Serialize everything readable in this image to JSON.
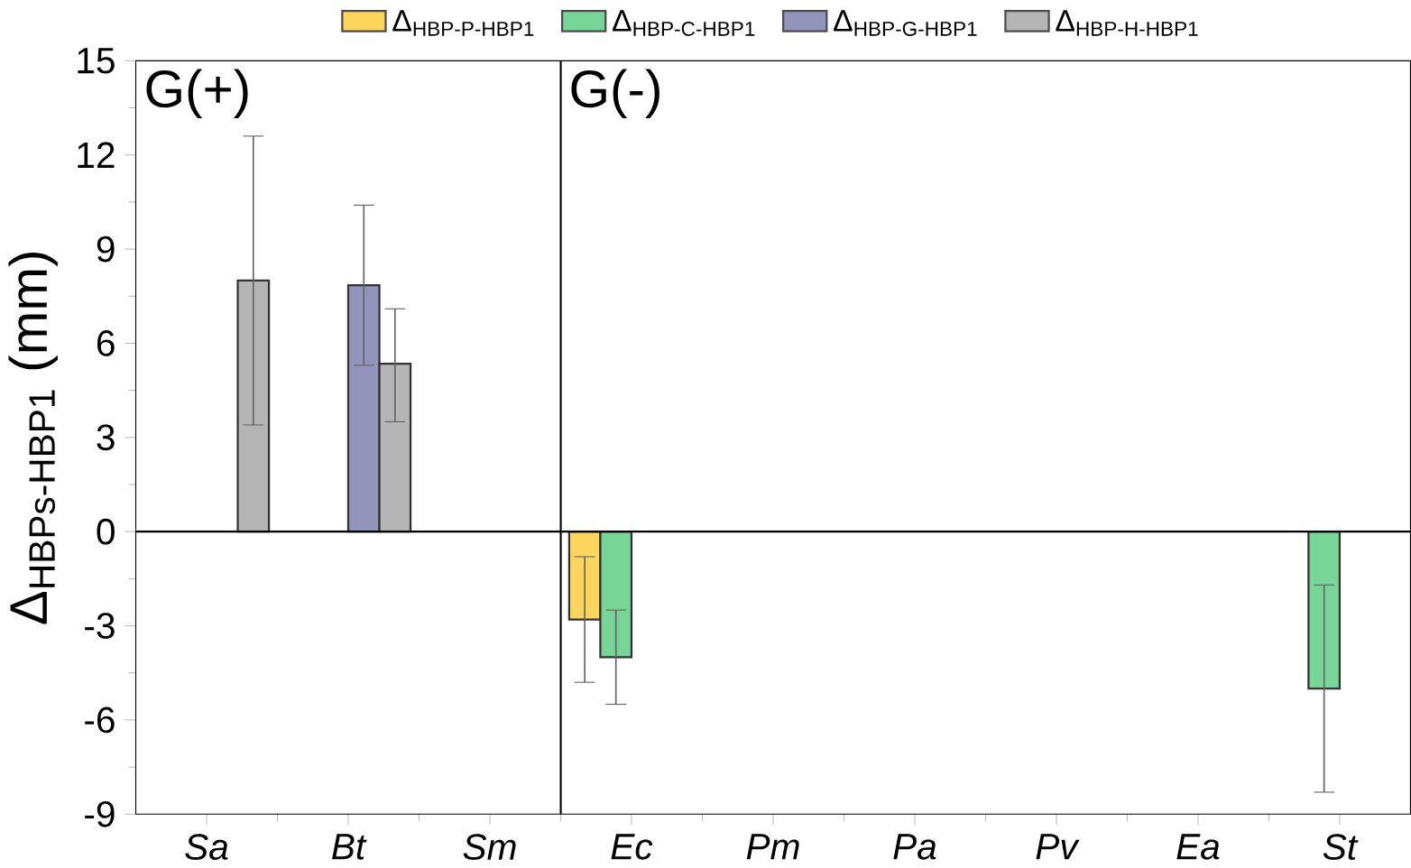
{
  "chart_data": {
    "type": "bar",
    "ylabel": "Δ$_{HBPs-HBP1}$ (mm)",
    "categories": [
      "Sa",
      "Bt",
      "Sm",
      "Ec",
      "Pm",
      "Pa",
      "Pv",
      "Ea",
      "St"
    ],
    "series": [
      {
        "name": "Δ$_{HBP-P-HBP1}$",
        "color": "#fdd55c",
        "values": [
          null,
          null,
          null,
          -2.8,
          null,
          null,
          null,
          null,
          null
        ],
        "errors": [
          null,
          null,
          null,
          [
            -4.8,
            -0.8
          ],
          null,
          null,
          null,
          null,
          null
        ]
      },
      {
        "name": "Δ$_{HBP-C-HBP1}$",
        "color": "#77d598",
        "values": [
          null,
          null,
          null,
          -4.0,
          null,
          null,
          null,
          null,
          -5.0
        ],
        "errors": [
          null,
          null,
          null,
          [
            -5.5,
            -2.5
          ],
          null,
          null,
          null,
          null,
          [
            -8.3,
            -1.7
          ]
        ]
      },
      {
        "name": "Δ$_{HBP-G-HBP1}$",
        "color": "#9394bb",
        "values": [
          null,
          7.85,
          null,
          null,
          null,
          null,
          null,
          null,
          null
        ],
        "errors": [
          null,
          [
            5.3,
            10.4
          ],
          null,
          null,
          null,
          null,
          null,
          null,
          null
        ]
      },
      {
        "name": "Δ$_{HBP-H-HBP1}$",
        "color": "#b5b5b5",
        "values": [
          8.0,
          5.35,
          null,
          null,
          null,
          null,
          null,
          null,
          null
        ],
        "errors": [
          [
            3.4,
            12.6
          ],
          [
            3.5,
            7.1
          ],
          null,
          null,
          null,
          null,
          null,
          null,
          null
        ]
      }
    ],
    "ylim": [
      -9,
      15
    ],
    "yticks": [
      -9,
      -6,
      -3,
      0,
      3,
      6,
      9,
      12,
      15
    ],
    "ref_lines": [
      {
        "axis": "y",
        "value": 0
      }
    ],
    "annotations": [
      "G(+)",
      "G(-)"
    ],
    "legend": "top",
    "grid": false
  }
}
